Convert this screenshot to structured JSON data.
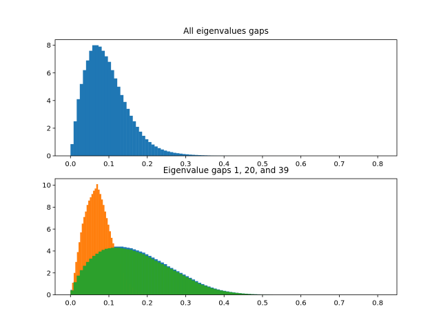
{
  "chart_data": [
    {
      "type": "histogram",
      "title": "All eigenvalues gaps",
      "xlim": [
        -0.04,
        0.85
      ],
      "ylim": [
        0,
        8.4
      ],
      "xticks": [
        0.0,
        0.1,
        0.2,
        0.3,
        0.4,
        0.5,
        0.6,
        0.7,
        0.8
      ],
      "xtick_labels": [
        "0.0",
        "0.1",
        "0.2",
        "0.3",
        "0.4",
        "0.5",
        "0.6",
        "0.7",
        "0.8"
      ],
      "yticks": [
        0,
        2,
        4,
        6,
        8
      ],
      "ytick_labels": [
        "0",
        "2",
        "4",
        "6",
        "8"
      ],
      "bin_width": 0.0081,
      "bin_start": 0.0,
      "series": [
        {
          "color": "#1f77b4",
          "values": [
            0.85,
            2.5,
            4.1,
            5.2,
            6.2,
            6.9,
            7.6,
            8.0,
            8.0,
            7.9,
            7.6,
            7.2,
            6.8,
            6.2,
            5.6,
            5.0,
            4.4,
            3.9,
            3.4,
            2.9,
            2.5,
            2.1,
            1.75,
            1.45,
            1.2,
            1.0,
            0.82,
            0.68,
            0.56,
            0.46,
            0.38,
            0.32,
            0.27,
            0.22,
            0.19,
            0.16,
            0.13,
            0.11,
            0.09,
            0.075,
            0.062,
            0.052,
            0.043,
            0.036,
            0.03,
            0.025,
            0.021,
            0.017,
            0.014,
            0.012,
            0.01,
            0.008,
            0.007,
            0.006,
            0.005,
            0.004,
            0.0035,
            0.003,
            0.0025,
            0.002,
            0.0018,
            0.0015,
            0.0012,
            0.001,
            0.0009,
            0.0008,
            0.0006,
            0.0005,
            0.0004,
            0.0003,
            0.0003,
            0.0002,
            0.0002,
            0.0001,
            0.0001,
            0.0001,
            0.0001,
            0.0001,
            0.0001,
            0.0001,
            0.0001,
            0.0001,
            0.0001,
            0.0001,
            0.0001,
            0.0001,
            0.0001,
            0.0001,
            0.0001,
            0.0001,
            0.0001,
            0.0001,
            0.0001,
            0.0001,
            0.0001,
            0.0001,
            0.0001,
            0.0001,
            0.0001,
            0.0001
          ]
        }
      ]
    },
    {
      "type": "histogram",
      "title": "Eigenvalue gaps 1, 20, and 39",
      "xlim": [
        -0.04,
        0.85
      ],
      "ylim": [
        0,
        10.6
      ],
      "xticks": [
        0.0,
        0.1,
        0.2,
        0.3,
        0.4,
        0.5,
        0.6,
        0.7,
        0.8
      ],
      "xtick_labels": [
        "0.0",
        "0.1",
        "0.2",
        "0.3",
        "0.4",
        "0.5",
        "0.6",
        "0.7",
        "0.8"
      ],
      "yticks": [
        0,
        2,
        4,
        6,
        8,
        10
      ],
      "ytick_labels": [
        "0",
        "2",
        "4",
        "6",
        "8",
        "10"
      ],
      "series": [
        {
          "color": "#1f77b4",
          "bin_start": 0.0,
          "bin_width": 0.0081,
          "values": [
            0.45,
            1.2,
            1.8,
            2.3,
            2.7,
            3.05,
            3.35,
            3.6,
            3.8,
            4.0,
            4.15,
            4.25,
            4.3,
            4.35,
            4.4,
            4.4,
            4.4,
            4.35,
            4.3,
            4.25,
            4.15,
            4.05,
            3.95,
            3.85,
            3.7,
            3.55,
            3.4,
            3.25,
            3.1,
            2.95,
            2.8,
            2.6,
            2.45,
            2.3,
            2.15,
            2.0,
            1.85,
            1.7,
            1.55,
            1.4,
            1.25,
            1.1,
            0.98,
            0.86,
            0.76,
            0.66,
            0.57,
            0.49,
            0.42,
            0.36,
            0.31,
            0.26,
            0.22,
            0.18,
            0.15,
            0.12,
            0.1,
            0.08,
            0.065,
            0.05,
            0.04,
            0.03,
            0.02,
            0.015
          ]
        },
        {
          "color": "#ff7f0e",
          "bin_start": 0.0,
          "bin_width": 0.0042,
          "values": [
            0.4,
            1.1,
            2.0,
            3.0,
            3.9,
            4.8,
            5.7,
            6.5,
            7.1,
            7.6,
            8.2,
            8.6,
            8.9,
            9.2,
            9.5,
            9.7,
            10.1,
            9.6,
            9.2,
            8.7,
            8.2,
            7.6,
            7.0,
            6.4,
            5.8,
            5.2,
            4.7,
            4.2,
            3.7,
            3.2,
            2.8,
            2.4,
            2.0,
            1.7,
            1.45,
            1.2,
            1.0,
            0.82,
            0.66,
            0.54,
            0.44,
            0.35,
            0.28,
            0.22,
            0.17,
            0.13,
            0.1,
            0.08,
            0.06,
            0.045,
            0.034,
            0.025,
            0.018,
            0.013,
            0.009,
            0.006,
            0.004,
            0.003,
            0.002
          ]
        },
        {
          "color": "#2ca02c",
          "bin_start": 0.0,
          "bin_width": 0.0081,
          "values": [
            0.4,
            1.15,
            1.75,
            2.25,
            2.65,
            3.0,
            3.3,
            3.55,
            3.75,
            3.95,
            4.1,
            4.2,
            4.25,
            4.3,
            4.3,
            4.3,
            4.25,
            4.2,
            4.15,
            4.1,
            4.0,
            3.9,
            3.8,
            3.7,
            3.55,
            3.4,
            3.25,
            3.1,
            2.95,
            2.8,
            2.65,
            2.5,
            2.35,
            2.2,
            2.05,
            1.9,
            1.75,
            1.6,
            1.45,
            1.3,
            1.15,
            1.0,
            0.9,
            0.8,
            0.7,
            0.6,
            0.52,
            0.45,
            0.39,
            0.33,
            0.28,
            0.24,
            0.2,
            0.17,
            0.14,
            0.11,
            0.09,
            0.07,
            0.055,
            0.042,
            0.032,
            0.024,
            0.018,
            0.013,
            0.009
          ]
        }
      ]
    }
  ]
}
